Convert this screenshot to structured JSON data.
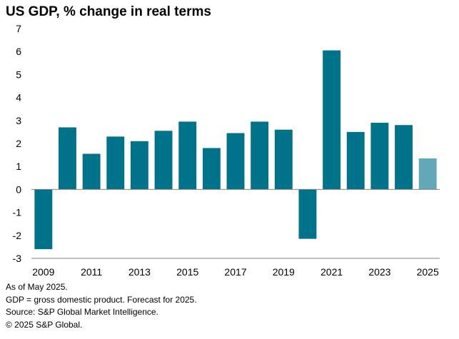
{
  "chart_data": {
    "type": "bar",
    "title": "US GDP, % change in real terms",
    "xlabel": "",
    "ylabel": "",
    "x": [
      2009,
      2010,
      2011,
      2012,
      2013,
      2014,
      2015,
      2016,
      2017,
      2018,
      2019,
      2020,
      2021,
      2022,
      2023,
      2024,
      2025
    ],
    "x_tick_labels": [
      "2009",
      "2011",
      "2013",
      "2015",
      "2017",
      "2019",
      "2021",
      "2023",
      "2025"
    ],
    "y_tick_labels": [
      "7",
      "6",
      "5",
      "4",
      "3",
      "2",
      "1",
      "0",
      "-1",
      "-2",
      "-3"
    ],
    "values": [
      -2.6,
      2.7,
      1.55,
      2.3,
      2.1,
      2.55,
      2.95,
      1.8,
      2.45,
      2.95,
      2.6,
      -2.15,
      6.05,
      2.5,
      2.9,
      2.8,
      1.35
    ],
    "forecast": [
      false,
      false,
      false,
      false,
      false,
      false,
      false,
      false,
      false,
      false,
      false,
      false,
      false,
      false,
      false,
      false,
      true
    ],
    "ylim": [
      -3,
      7
    ],
    "grid": false,
    "legend": "none",
    "colors": {
      "actual": "#00728a",
      "forecast": "#62a8b8",
      "axis": "#808080"
    }
  },
  "notes": [
    "As of May 2025.",
    "GDP = gross domestic product. Forecast for 2025.",
    "Source: S&P Global Market Intelligence.",
    "© 2025 S&P Global."
  ]
}
